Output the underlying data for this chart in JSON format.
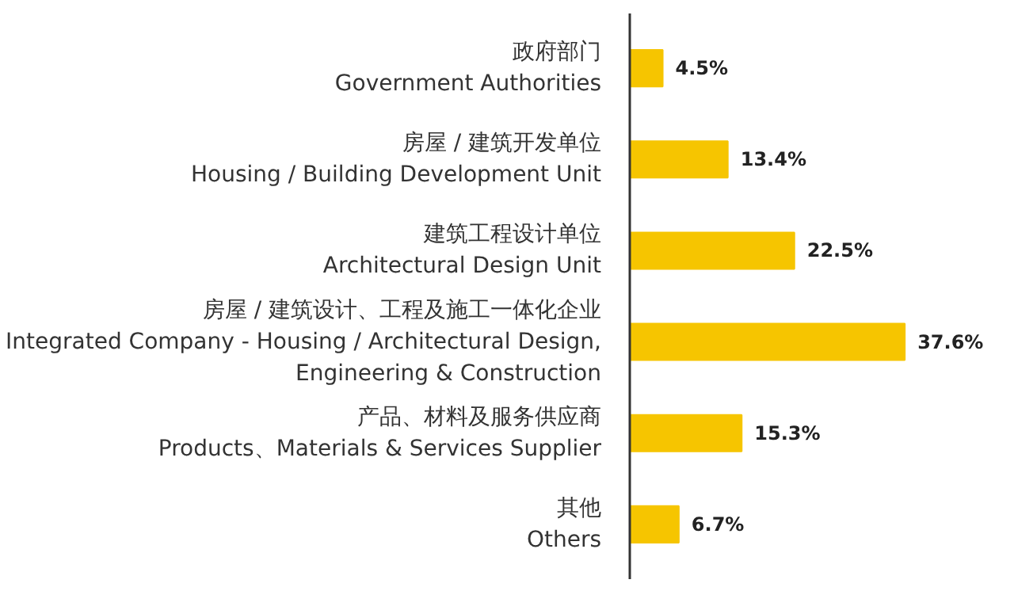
{
  "chart_data": {
    "type": "bar",
    "orientation": "horizontal",
    "categories": [
      "政府部门\nGovernment Authorities",
      "房屋 / 建筑开发单位\nHousing / Building Development Unit",
      "建筑工程设计单位\nArchitectural Design Unit",
      "房屋 / 建筑设计、工程及施工一体化企业\nIntegrated Company - Housing / Architectural Design,\nEngineering & Construction",
      "产品、材料及服务供应商\nProducts、Materials & Services Supplier",
      "其他\nOthers"
    ],
    "values": [
      4.5,
      13.4,
      22.5,
      37.6,
      15.3,
      6.7
    ],
    "value_labels": [
      "4.5%",
      "13.4%",
      "22.5%",
      "37.6%",
      "15.3%",
      "6.7%"
    ],
    "color": "#f6c500",
    "tick_labels": "y"
  }
}
